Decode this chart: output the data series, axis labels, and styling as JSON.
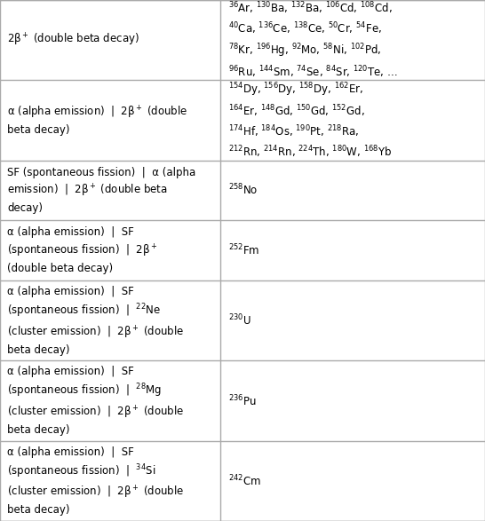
{
  "figsize": [
    5.46,
    5.87
  ],
  "dpi": 100,
  "background_color": "#ffffff",
  "border_color": "#aaaaaa",
  "text_color": "#000000",
  "col_split": 0.455,
  "rows": [
    {
      "left": "2β$^+$ (double beta decay)",
      "right": "$^{36}$Ar, $^{130}$Ba, $^{132}$Ba, $^{106}$Cd, $^{108}$Cd,\n$^{40}$Ca, $^{136}$Ce, $^{138}$Ce, $^{50}$Cr, $^{54}$Fe,\n$^{78}$Kr, $^{196}$Hg, $^{92}$Mo, $^{58}$Ni, $^{102}$Pd,\n$^{96}$Ru, $^{144}$Sm, $^{74}$Se, $^{84}$Sr, $^{120}$Te, …"
    },
    {
      "left": "α (alpha emission)  |  2β$^+$ (double\nbeta decay)",
      "right": "$^{154}$Dy, $^{156}$Dy, $^{158}$Dy, $^{162}$Er,\n$^{164}$Er, $^{148}$Gd, $^{150}$Gd, $^{152}$Gd,\n$^{174}$Hf, $^{184}$Os, $^{190}$Pt, $^{218}$Ra,\n$^{212}$Rn, $^{214}$Rn, $^{224}$Th, $^{180}$W, $^{168}$Yb"
    },
    {
      "left": "SF (spontaneous fission)  |  α (alpha\nemission)  |  2β$^+$ (double beta\ndecay)",
      "right": "$^{258}$No"
    },
    {
      "left": "α (alpha emission)  |  SF\n(spontaneous fission)  |  2β$^+$\n(double beta decay)",
      "right": "$^{252}$Fm"
    },
    {
      "left": "α (alpha emission)  |  SF\n(spontaneous fission)  |  $^{22}$Ne\n(cluster emission)  |  2β$^+$ (double\nbeta decay)",
      "right": "$^{230}$U"
    },
    {
      "left": "α (alpha emission)  |  SF\n(spontaneous fission)  |  $^{28}$Mg\n(cluster emission)  |  2β$^+$ (double\nbeta decay)",
      "right": "$^{236}$Pu"
    },
    {
      "left": "α (alpha emission)  |  SF\n(spontaneous fission)  |  $^{34}$Si\n(cluster emission)  |  2β$^+$ (double\nbeta decay)",
      "right": "$^{242}$Cm"
    }
  ],
  "row_heights_norm": [
    4,
    4,
    3,
    3,
    4,
    4,
    4
  ]
}
